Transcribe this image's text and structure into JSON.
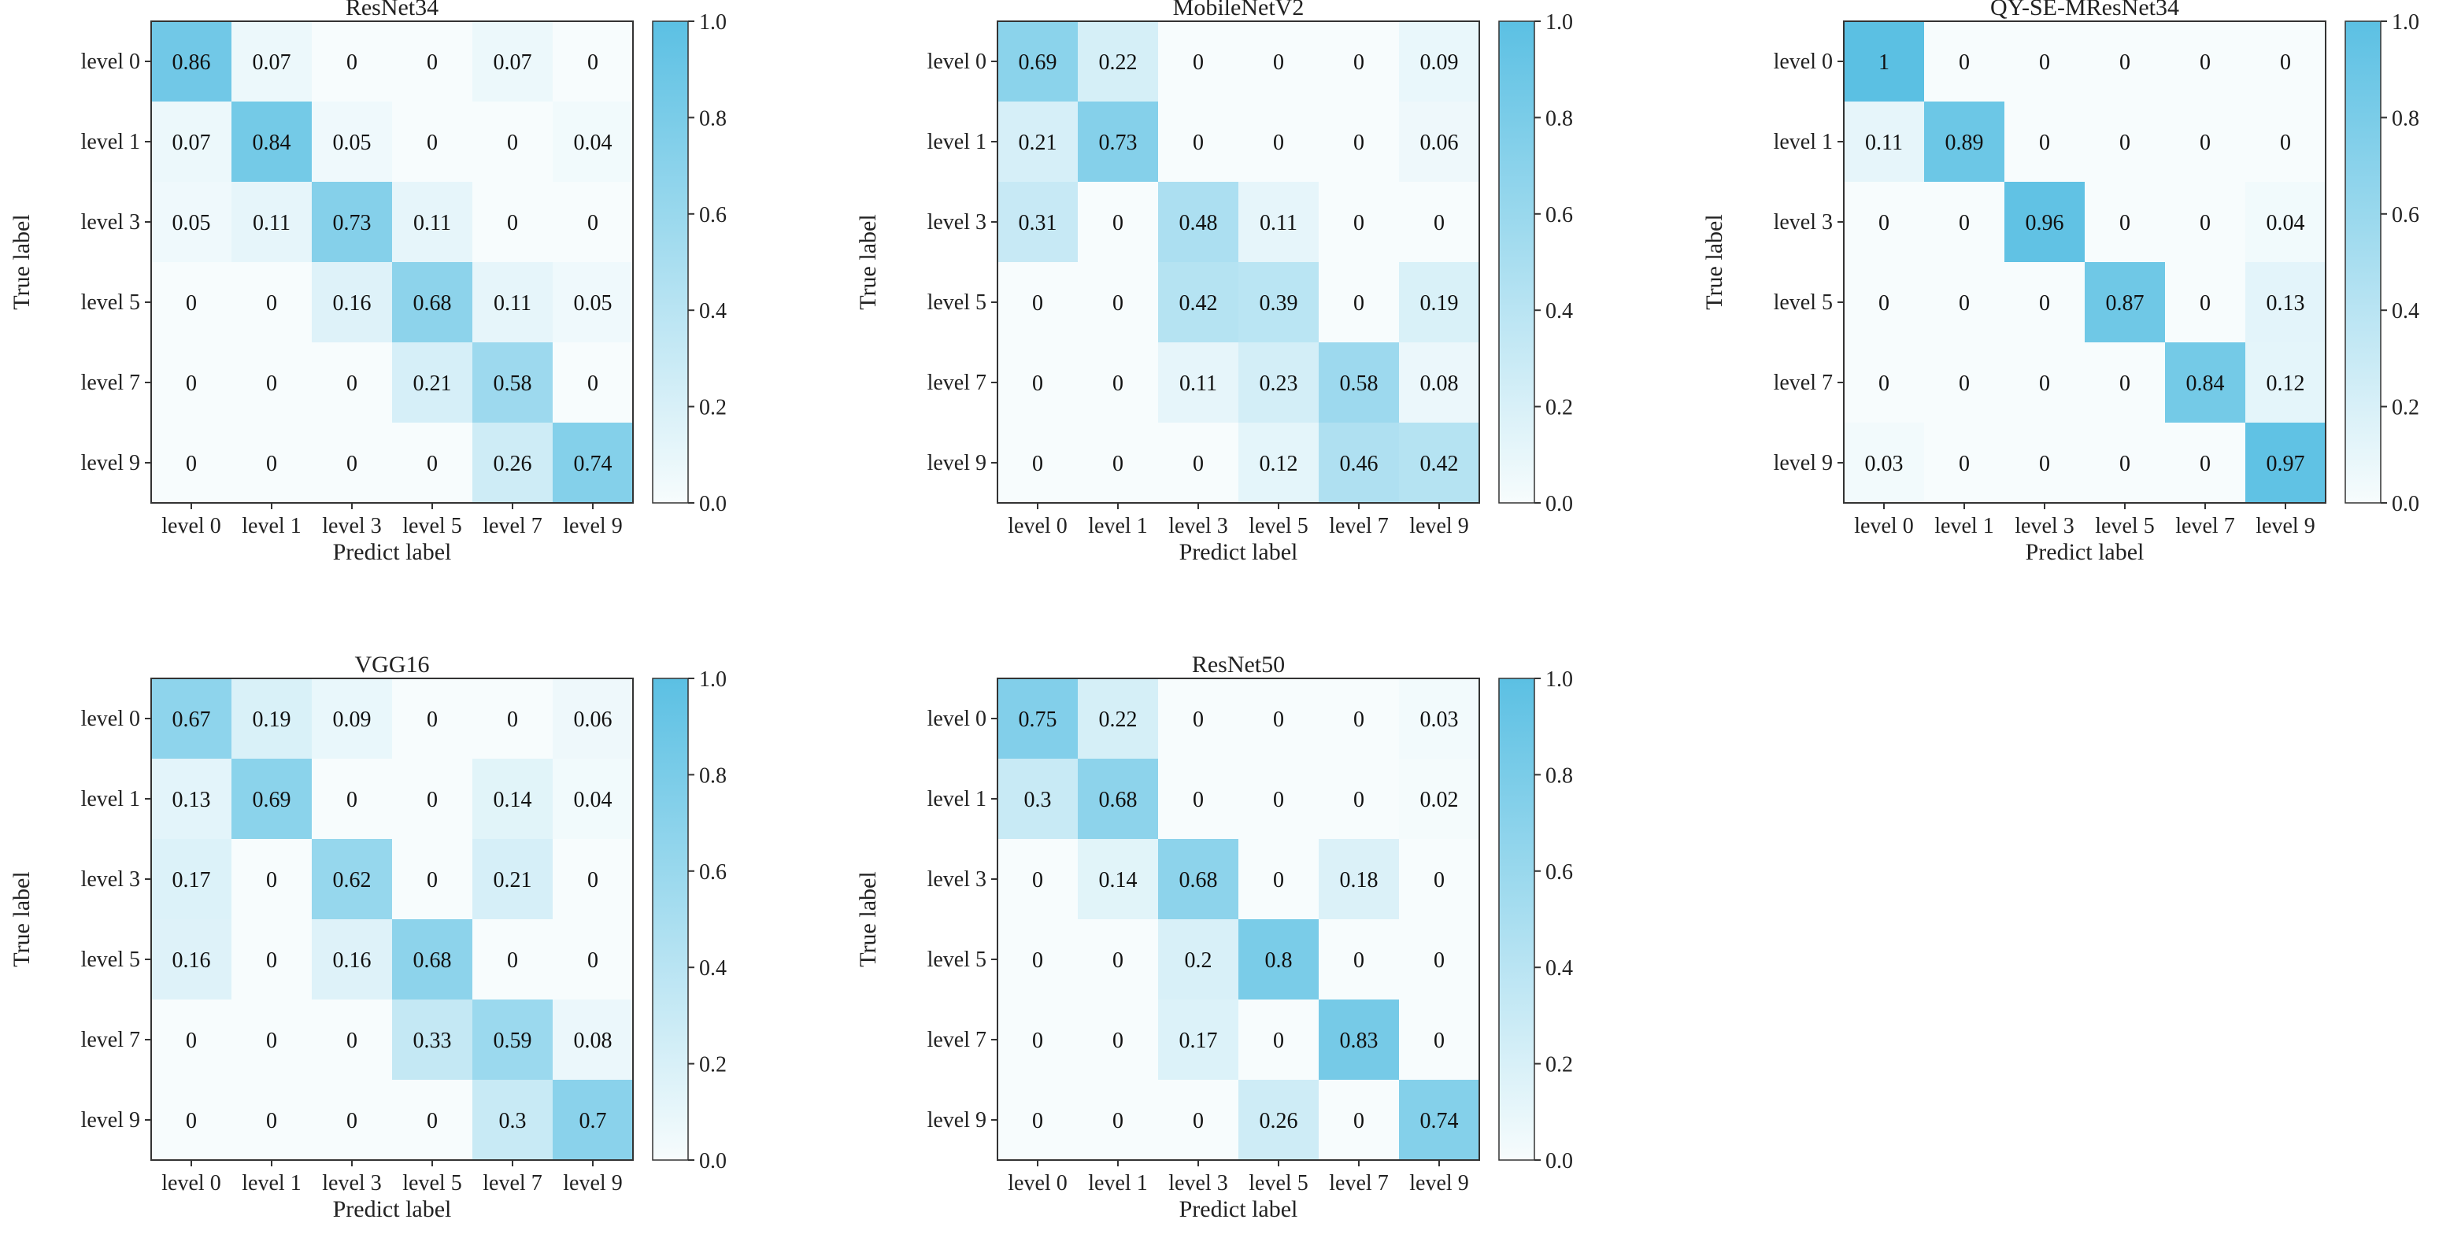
{
  "chart_data": [
    {
      "type": "heatmap",
      "title": "ResNet34",
      "xlabel": "Predict label",
      "ylabel": "True label",
      "x_categories": [
        "level 0",
        "level 1",
        "level 3",
        "level 5",
        "level 7",
        "level 9"
      ],
      "y_categories": [
        "level 0",
        "level 1",
        "level 3",
        "level 5",
        "level 7",
        "level 9"
      ],
      "values": [
        [
          0.86,
          0.07,
          0,
          0,
          0.07,
          0
        ],
        [
          0.07,
          0.84,
          0.05,
          0,
          0,
          0.04
        ],
        [
          0.05,
          0.11,
          0.73,
          0.11,
          0,
          0
        ],
        [
          0,
          0,
          0.16,
          0.68,
          0.11,
          0.05
        ],
        [
          0,
          0,
          0,
          0.21,
          0.58,
          0
        ],
        [
          0,
          0,
          0,
          0,
          0.26,
          0.74
        ]
      ],
      "colorbar": {
        "range": [
          0,
          1
        ],
        "ticks": [
          "0.0",
          "0.2",
          "0.4",
          "0.6",
          "0.8",
          "1.0"
        ]
      }
    },
    {
      "type": "heatmap",
      "title": "MobileNetV2",
      "xlabel": "Predict label",
      "ylabel": "True label",
      "x_categories": [
        "level 0",
        "level 1",
        "level 3",
        "level 5",
        "level 7",
        "level 9"
      ],
      "y_categories": [
        "level 0",
        "level 1",
        "level 3",
        "level 5",
        "level 7",
        "level 9"
      ],
      "values": [
        [
          0.69,
          0.22,
          0,
          0,
          0,
          0.09
        ],
        [
          0.21,
          0.73,
          0,
          0,
          0,
          0.06
        ],
        [
          0.31,
          0,
          0.48,
          0.11,
          0,
          0
        ],
        [
          0,
          0,
          0.42,
          0.39,
          0,
          0.19
        ],
        [
          0,
          0,
          0.11,
          0.23,
          0.58,
          0.08
        ],
        [
          0,
          0,
          0,
          0.12,
          0.46,
          0.42
        ]
      ],
      "colorbar": {
        "range": [
          0,
          1
        ],
        "ticks": [
          "0.0",
          "0.2",
          "0.4",
          "0.6",
          "0.8",
          "1.0"
        ]
      }
    },
    {
      "type": "heatmap",
      "title": "QY-SE-MResNet34",
      "xlabel": "Predict label",
      "ylabel": "True label",
      "x_categories": [
        "level 0",
        "level 1",
        "level 3",
        "level 5",
        "level 7",
        "level 9"
      ],
      "y_categories": [
        "level 0",
        "level 1",
        "level 3",
        "level 5",
        "level 7",
        "level 9"
      ],
      "values": [
        [
          1,
          0,
          0,
          0,
          0,
          0
        ],
        [
          0.11,
          0.89,
          0,
          0,
          0,
          0
        ],
        [
          0,
          0,
          0.96,
          0,
          0,
          0.04
        ],
        [
          0,
          0,
          0,
          0.87,
          0,
          0.13
        ],
        [
          0,
          0,
          0,
          0,
          0.84,
          0.12
        ],
        [
          0.03,
          0,
          0,
          0,
          0,
          0.97
        ]
      ],
      "colorbar": {
        "range": [
          0,
          1
        ],
        "ticks": [
          "0.0",
          "0.2",
          "0.4",
          "0.6",
          "0.8",
          "1.0"
        ]
      }
    },
    {
      "type": "heatmap",
      "title": "VGG16",
      "xlabel": "Predict label",
      "ylabel": "True label",
      "x_categories": [
        "level 0",
        "level 1",
        "level 3",
        "level 5",
        "level 7",
        "level 9"
      ],
      "y_categories": [
        "level 0",
        "level 1",
        "level 3",
        "level 5",
        "level 7",
        "level 9"
      ],
      "values": [
        [
          0.67,
          0.19,
          0.09,
          0,
          0,
          0.06
        ],
        [
          0.13,
          0.69,
          0,
          0,
          0.14,
          0.04
        ],
        [
          0.17,
          0,
          0.62,
          0,
          0.21,
          0
        ],
        [
          0.16,
          0,
          0.16,
          0.68,
          0,
          0
        ],
        [
          0,
          0,
          0,
          0.33,
          0.59,
          0.08
        ],
        [
          0,
          0,
          0,
          0,
          0.3,
          0.7
        ]
      ],
      "colorbar": {
        "range": [
          0,
          1
        ],
        "ticks": [
          "0.0",
          "0.2",
          "0.4",
          "0.6",
          "0.8",
          "1.0"
        ]
      }
    },
    {
      "type": "heatmap",
      "title": "ResNet50",
      "xlabel": "Predict label",
      "ylabel": "True label",
      "x_categories": [
        "level 0",
        "level 1",
        "level 3",
        "level 5",
        "level 7",
        "level 9"
      ],
      "y_categories": [
        "level 0",
        "level 1",
        "level 3",
        "level 5",
        "level 7",
        "level 9"
      ],
      "values": [
        [
          0.75,
          0.22,
          0,
          0,
          0,
          0.03
        ],
        [
          0.3,
          0.68,
          0,
          0,
          0,
          0.02
        ],
        [
          0,
          0.14,
          0.68,
          0,
          0.18,
          0
        ],
        [
          0,
          0,
          0.2,
          0.8,
          0,
          0
        ],
        [
          0,
          0,
          0.17,
          0,
          0.83,
          0
        ],
        [
          0,
          0,
          0,
          0.26,
          0,
          0.74
        ]
      ],
      "colorbar": {
        "range": [
          0,
          1
        ],
        "ticks": [
          "0.0",
          "0.2",
          "0.4",
          "0.6",
          "0.8",
          "1.0"
        ]
      }
    }
  ],
  "colors": {
    "low": "#f7fcfd",
    "high": "#5bc0e3",
    "frame": "#333333",
    "text": "#111111"
  }
}
